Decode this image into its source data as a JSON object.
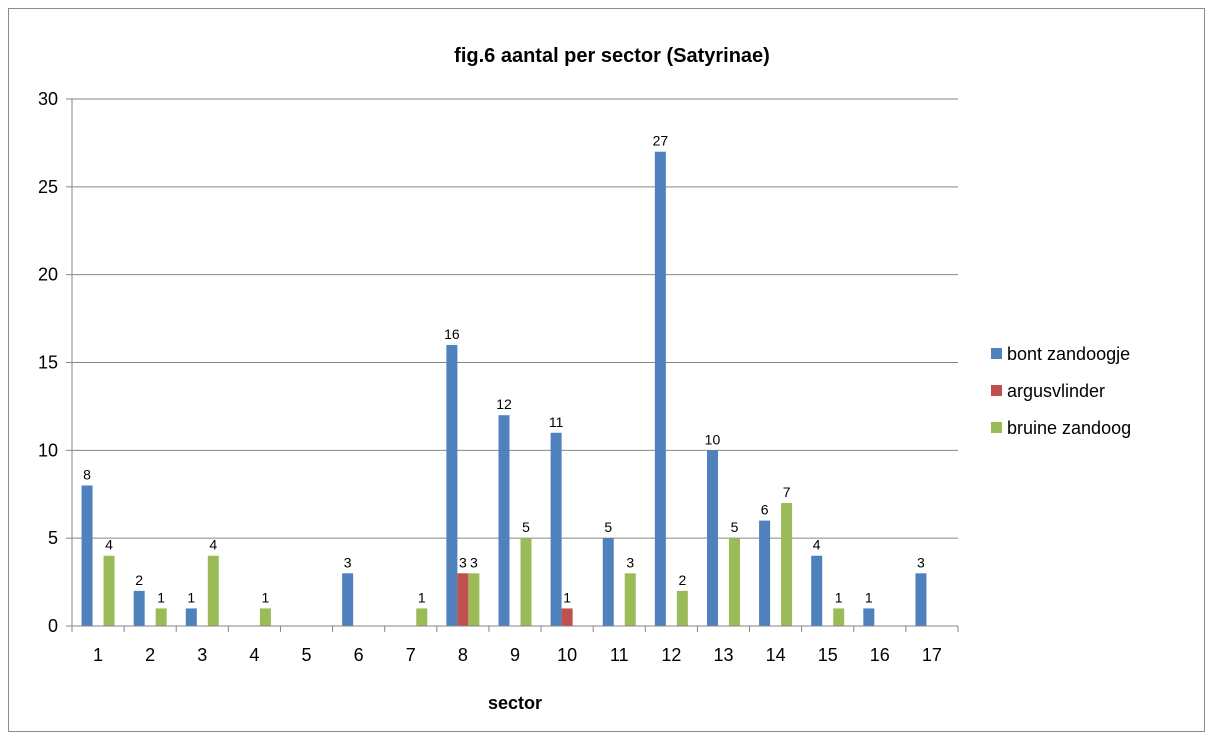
{
  "chart_data": {
    "type": "bar",
    "title": "fig.6 aantal per sector (Satyrinae)",
    "xlabel": "sector",
    "ylabel": "",
    "ylim": [
      0,
      30
    ],
    "yticks": [
      0,
      5,
      10,
      15,
      20,
      25,
      30
    ],
    "grid": true,
    "legend_position": "right",
    "categories": [
      "1",
      "2",
      "3",
      "4",
      "5",
      "6",
      "7",
      "8",
      "9",
      "10",
      "11",
      "12",
      "13",
      "14",
      "15",
      "16",
      "17"
    ],
    "series": [
      {
        "name": "bont zandoogje",
        "color": "#4f81bd",
        "values": [
          8,
          2,
          1,
          null,
          null,
          3,
          null,
          16,
          12,
          11,
          5,
          27,
          10,
          6,
          4,
          1,
          3
        ]
      },
      {
        "name": "argusvlinder",
        "color": "#c0504d",
        "values": [
          null,
          null,
          null,
          null,
          null,
          null,
          null,
          3,
          null,
          1,
          null,
          null,
          null,
          null,
          null,
          null,
          null
        ]
      },
      {
        "name": "bruine zandoog",
        "color": "#9bbb59",
        "values": [
          4,
          1,
          4,
          1,
          null,
          null,
          1,
          3,
          5,
          null,
          3,
          2,
          5,
          7,
          1,
          null,
          null
        ]
      }
    ]
  }
}
